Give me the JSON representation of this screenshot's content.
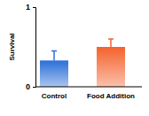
{
  "chart_data": {
    "type": "bar",
    "y_label": "Survival",
    "categories": [
      "Control",
      "Food Addition"
    ],
    "values": [
      0.33,
      0.5
    ],
    "errors": [
      0.12,
      0.1
    ],
    "colors": [
      "#2a6fd8",
      "#f4622c"
    ],
    "ylim": [
      0,
      1
    ],
    "yticks": [
      0,
      1
    ],
    "grid": false
  }
}
